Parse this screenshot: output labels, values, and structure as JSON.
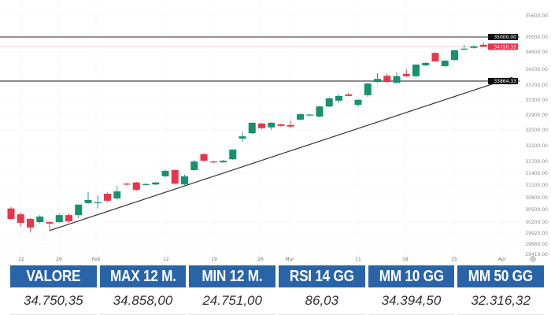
{
  "chart_data": {
    "type": "candlestick",
    "colors": {
      "up": "#15926e",
      "down": "#e8364a",
      "line": "#333333",
      "price_label": "#e8364a",
      "level_label": "#111111"
    },
    "y_ticks": [
      "35600.00",
      "35000.00",
      "34600.00",
      "34100.00",
      "33700.00",
      "33300.00",
      "32900.00",
      "32500.00",
      "32100.00",
      "31700.00",
      "31400.00",
      "31100.00",
      "30800.00",
      "30500.00",
      "30200.00",
      "29920.00",
      "29660.00",
      "29410.00"
    ],
    "x_ticks": [
      "22",
      "26",
      "Feb",
      "12",
      "19",
      "26",
      "Mar",
      "11",
      "18",
      "25",
      "Apr"
    ],
    "horizontal_levels": [
      {
        "price": 35000.0,
        "label": "35000.00"
      },
      {
        "price": 33864.33,
        "label": "33864.33"
      }
    ],
    "last_price": {
      "price": 34750.35,
      "label": "34750.35"
    },
    "trendline": {
      "from": {
        "candle": 5,
        "price": 30010
      },
      "to": {
        "candle": 53,
        "price": 33960
      }
    },
    "candles": [
      [
        30580,
        30620,
        30290,
        30310
      ],
      [
        30430,
        30470,
        30110,
        30210
      ],
      [
        30310,
        30330,
        29970,
        30090
      ],
      [
        30230,
        30410,
        30190,
        30370
      ],
      [
        30230,
        30260,
        30010,
        30190
      ],
      [
        30230,
        30450,
        30210,
        30410
      ],
      [
        30410,
        30450,
        30210,
        30250
      ],
      [
        30410,
        30680,
        30330,
        30680
      ],
      [
        30720,
        31000,
        30700,
        30800
      ],
      [
        30720,
        30920,
        30580,
        30740
      ],
      [
        30960,
        30990,
        30760,
        30780
      ],
      [
        30840,
        31160,
        30810,
        31020
      ],
      [
        31220,
        31240,
        31160,
        31200
      ],
      [
        31250,
        31270,
        31040,
        31060
      ],
      [
        31200,
        31230,
        31170,
        31210
      ],
      [
        31200,
        31260,
        31180,
        31250
      ],
      [
        31410,
        31570,
        31390,
        31550
      ],
      [
        31570,
        31590,
        31200,
        31220
      ],
      [
        31200,
        31450,
        31180,
        31410
      ],
      [
        31570,
        31830,
        31550,
        31790
      ],
      [
        31980,
        32010,
        31790,
        31810
      ],
      [
        31790,
        31810,
        31750,
        31770
      ],
      [
        31770,
        31830,
        31760,
        31810
      ],
      [
        31850,
        32100,
        31830,
        32100
      ],
      [
        32380,
        32560,
        32300,
        32440
      ],
      [
        32520,
        32800,
        32500,
        32790
      ],
      [
        32770,
        32790,
        32620,
        32650
      ],
      [
        32670,
        32800,
        32600,
        32790
      ],
      [
        32750,
        32770,
        32680,
        32710
      ],
      [
        32730,
        32850,
        32670,
        32690
      ],
      [
        32870,
        33030,
        32850,
        33010
      ],
      [
        32990,
        33020,
        32960,
        33000
      ],
      [
        32950,
        33220,
        32930,
        33210
      ],
      [
        33210,
        33440,
        33190,
        33420
      ],
      [
        33360,
        33520,
        33300,
        33480
      ],
      [
        33520,
        33560,
        33470,
        33480
      ],
      [
        33250,
        33400,
        33200,
        33380
      ],
      [
        33500,
        33820,
        33460,
        33800
      ],
      [
        33840,
        34070,
        33820,
        33920
      ],
      [
        34000,
        34060,
        33820,
        33840
      ],
      [
        33820,
        34090,
        33800,
        33990
      ],
      [
        34050,
        34170,
        33960,
        33990
      ],
      [
        33990,
        34290,
        33960,
        34290
      ],
      [
        34270,
        34350,
        34250,
        34330
      ],
      [
        34590,
        34610,
        34370,
        34370
      ],
      [
        34250,
        34410,
        34230,
        34390
      ],
      [
        34410,
        34660,
        34390,
        34660
      ],
      [
        34690,
        34800,
        34680,
        34700
      ],
      [
        34720,
        34790,
        34700,
        34760
      ],
      [
        34800,
        34860,
        34740,
        34750
      ]
    ],
    "candle_format": "open,high,low,close",
    "grid": true,
    "settings_icon": "gear-icon"
  },
  "stats": [
    {
      "label": "VALORE",
      "value": "34.750,35"
    },
    {
      "label": "MAX 12 M.",
      "value": "34.858,00"
    },
    {
      "label": "MIN 12 M.",
      "value": "24.751,00"
    },
    {
      "label": "RSI 14 GG",
      "value": "86,03"
    },
    {
      "label": "MM 10 GG",
      "value": "34.394,50"
    },
    {
      "label": "MM 50 GG",
      "value": "32.316,32"
    }
  ]
}
